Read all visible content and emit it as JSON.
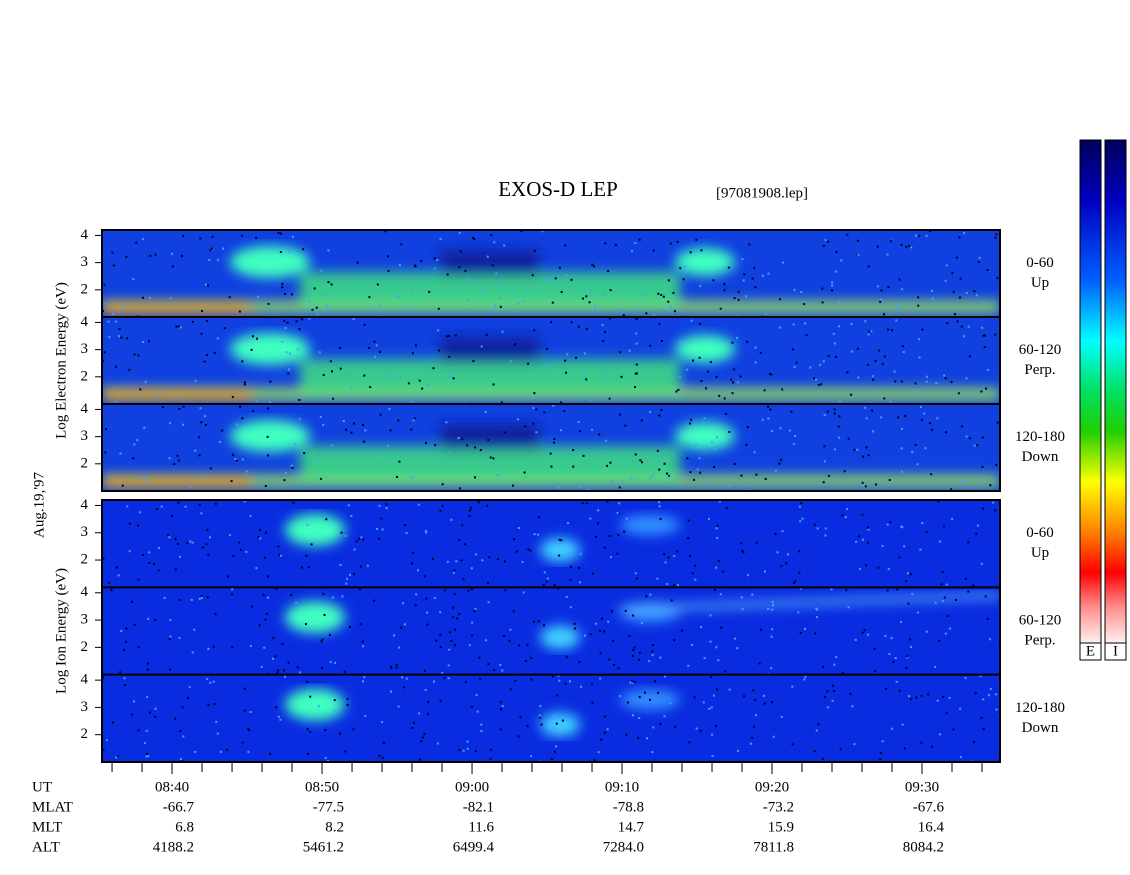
{
  "chart_data": {
    "type": "spectrogram",
    "title": "EXOS-D LEP",
    "file": "[97081908.lep]",
    "date": "Aug.19,'97",
    "x_label": "UT",
    "xlim": [
      515.33,
      575.2
    ],
    "xticks": [
      {
        "value": 520,
        "label": "08:40"
      },
      {
        "value": 530,
        "label": "08:50"
      },
      {
        "value": 540,
        "label": "09:00"
      },
      {
        "value": 550,
        "label": "09:10"
      },
      {
        "value": 560,
        "label": "09:20"
      },
      {
        "value": 570,
        "label": "09:30"
      }
    ],
    "xminorticks": [
      516,
      518,
      522,
      524,
      526,
      528,
      532,
      534,
      536,
      538,
      542,
      544,
      546,
      548,
      552,
      554,
      556,
      558,
      562,
      564,
      566,
      568,
      572,
      574
    ],
    "ylim": [
      1,
      4.2
    ],
    "yticks": [
      2,
      3,
      4
    ],
    "groups": [
      {
        "ylabel": "Log Electron Energy (eV)",
        "panels": [
          {
            "angle": "0-60",
            "direction": "Up"
          },
          {
            "angle": "60-120",
            "direction": "Perp."
          },
          {
            "angle": "120-180",
            "direction": "Down"
          }
        ]
      },
      {
        "ylabel": "Log Ion Energy (eV)",
        "panels": [
          {
            "angle": "0-60",
            "direction": "Up"
          },
          {
            "angle": "60-120",
            "direction": "Perp."
          },
          {
            "angle": "120-180",
            "direction": "Down"
          }
        ]
      }
    ],
    "ephemeris": [
      {
        "name": "MLAT",
        "values": [
          "-66.7",
          "-77.5",
          "-82.1",
          "-78.8",
          "-73.2",
          "-67.6"
        ]
      },
      {
        "name": "MLT",
        "values": [
          "6.8",
          "8.2",
          "11.6",
          "14.7",
          "15.9",
          "16.4"
        ]
      },
      {
        "name": "ALT",
        "values": [
          "4188.2",
          "5461.2",
          "6499.4",
          "7284.0",
          "7811.8",
          "8084.2"
        ]
      }
    ],
    "colorbars": [
      "E",
      "I"
    ]
  }
}
